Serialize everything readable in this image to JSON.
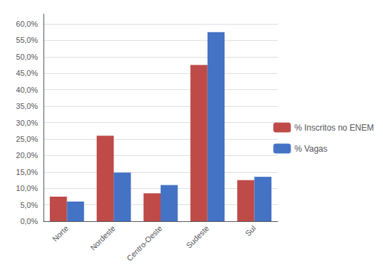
{
  "chart_data": {
    "type": "bar",
    "categories": [
      "Norte",
      "Nordeste",
      "Centro-Oeste",
      "Sudeste",
      "Sul"
    ],
    "series": [
      {
        "name": "% Inscritos no ENEM",
        "color": "#BE4B48",
        "values": [
          7.5,
          26.0,
          8.5,
          47.5,
          12.5
        ]
      },
      {
        "name": "% Vagas",
        "color": "#4472C4",
        "values": [
          6.0,
          14.8,
          11.0,
          57.5,
          13.5
        ]
      }
    ],
    "ylim": [
      0,
      63
    ],
    "yticks": [
      {
        "value": 0,
        "label": "0,0%"
      },
      {
        "value": 5,
        "label": "5,0%"
      },
      {
        "value": 10,
        "label": "10,0%"
      },
      {
        "value": 15,
        "label": "15,0%"
      },
      {
        "value": 20,
        "label": "20,0%"
      },
      {
        "value": 25,
        "label": "25,0%"
      },
      {
        "value": 30,
        "label": "30,0%"
      },
      {
        "value": 35,
        "label": "35,0%"
      },
      {
        "value": 40,
        "label": "40,0%"
      },
      {
        "value": 45,
        "label": "45,0%"
      },
      {
        "value": 50,
        "label": "50,0%"
      },
      {
        "value": 55,
        "label": "55,0%"
      },
      {
        "value": 60,
        "label": "60,0%"
      }
    ],
    "grid": true,
    "legend": "right"
  }
}
